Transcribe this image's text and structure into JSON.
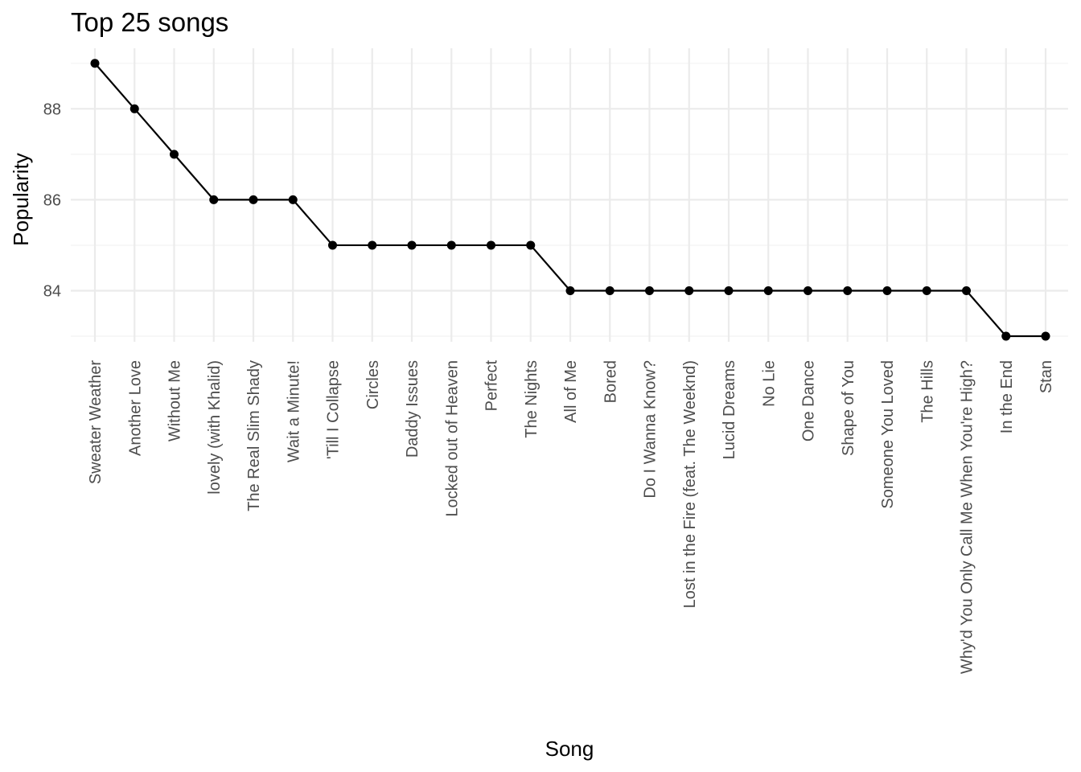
{
  "chart_data": {
    "type": "line",
    "title": "Top 25 songs",
    "xlabel": "Song",
    "ylabel": "Popularity",
    "categories": [
      "Sweater Weather",
      "Another Love",
      "Without Me",
      "lovely (with Khalid)",
      "The Real Slim Shady",
      "Wait a Minute!",
      "'Till I Collapse",
      "Circles",
      "Daddy Issues",
      "Locked out of Heaven",
      "Perfect",
      "The Nights",
      "All of Me",
      "Bored",
      "Do I Wanna Know?",
      "Lost in the Fire (feat. The Weeknd)",
      "Lucid Dreams",
      "No Lie",
      "One Dance",
      "Shape of You",
      "Someone You Loved",
      "The Hills",
      "Why'd You Only Call Me When You're High?",
      "In the End",
      "Stan"
    ],
    "values": [
      89,
      88,
      87,
      86,
      86,
      86,
      85,
      85,
      85,
      85,
      85,
      85,
      84,
      84,
      84,
      84,
      84,
      84,
      84,
      84,
      84,
      84,
      84,
      83,
      83
    ],
    "yticks": [
      84,
      86,
      88
    ],
    "ylim": [
      82.8,
      89.2
    ],
    "grid": true,
    "legend": "none",
    "colors": {
      "line": "#000000",
      "point": "#000000",
      "grid": "#ebebeb",
      "tick_text": "#4d4d4d"
    }
  }
}
